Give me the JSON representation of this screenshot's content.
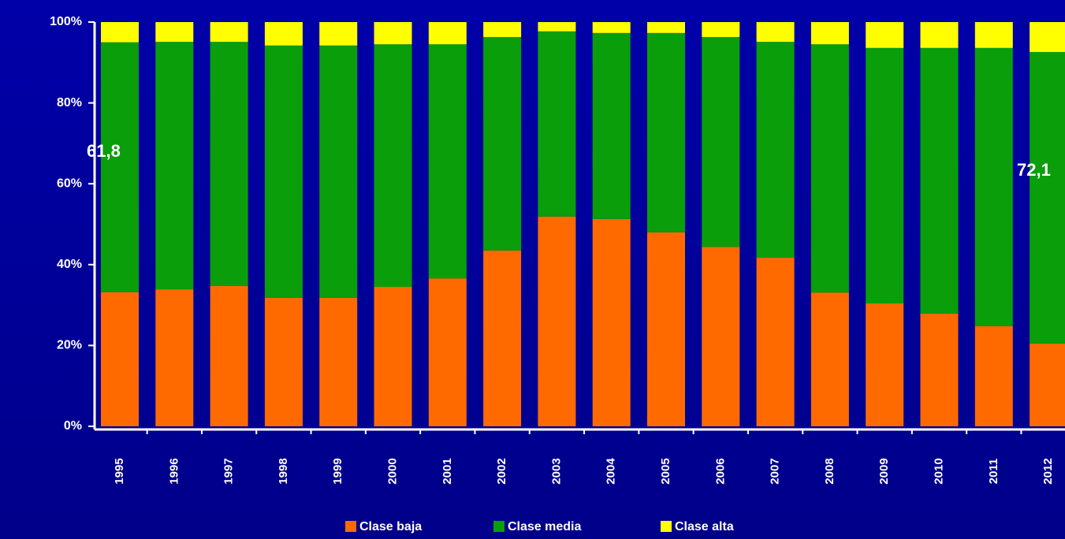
{
  "chart_data": {
    "type": "stacked_bar",
    "categories": [
      "1995",
      "1996",
      "1997",
      "1998",
      "1999",
      "2000",
      "2001",
      "2002",
      "2003",
      "2004",
      "2005",
      "2006",
      "2007",
      "2008",
      "2009",
      "2010",
      "2011",
      "2012"
    ],
    "series": [
      {
        "name": "Clase baja",
        "color": "#ff6a00",
        "values": [
          33.2,
          33.9,
          34.7,
          31.8,
          31.8,
          34.5,
          36.6,
          43.5,
          51.9,
          51.3,
          48.0,
          44.4,
          41.7,
          33.1,
          30.4,
          27.9,
          24.8,
          20.5
        ]
      },
      {
        "name": "Clase media",
        "color": "#0a9e0a",
        "values": [
          61.8,
          61.2,
          60.4,
          62.4,
          62.4,
          60.0,
          57.9,
          52.8,
          45.8,
          46.0,
          49.3,
          51.9,
          53.4,
          61.4,
          63.2,
          65.7,
          68.8,
          72.1
        ]
      },
      {
        "name": "Clase alta",
        "color": "#ffff00",
        "values": [
          5.0,
          4.9,
          4.9,
          5.8,
          5.8,
          5.5,
          5.5,
          3.7,
          2.3,
          2.7,
          2.7,
          3.7,
          4.9,
          5.5,
          6.4,
          6.4,
          6.4,
          7.4
        ]
      }
    ],
    "annotations": [
      "61,8",
      "72,1"
    ],
    "ylim": [
      0,
      100
    ],
    "yticks": [
      {
        "value": 0,
        "label": "0%"
      },
      {
        "value": 20,
        "label": "20%"
      },
      {
        "value": 40,
        "label": "40%"
      },
      {
        "value": 60,
        "label": "60%"
      },
      {
        "value": 80,
        "label": "80%"
      },
      {
        "value": 100,
        "label": "100%"
      }
    ],
    "grid": false
  }
}
